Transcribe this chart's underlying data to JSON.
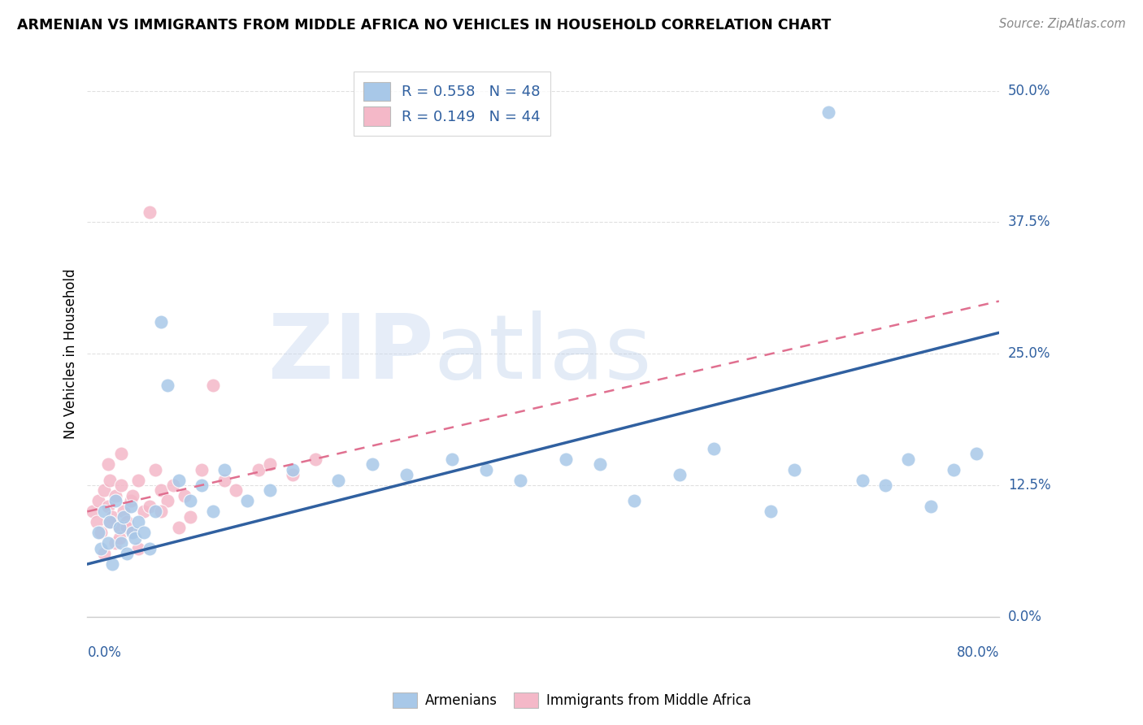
{
  "title": "ARMENIAN VS IMMIGRANTS FROM MIDDLE AFRICA NO VEHICLES IN HOUSEHOLD CORRELATION CHART",
  "source": "Source: ZipAtlas.com",
  "ylabel": "No Vehicles in Household",
  "ytick_vals": [
    0.0,
    12.5,
    25.0,
    37.5,
    50.0
  ],
  "xlim": [
    0.0,
    80.0
  ],
  "ylim": [
    0.0,
    50.0
  ],
  "blue_color": "#a8c8e8",
  "pink_color": "#f4b8c8",
  "blue_line_color": "#3060a0",
  "pink_line_color": "#e07090",
  "watermark_zip": "ZIP",
  "watermark_atlas": "atlas",
  "watermark_color": "#c8d8ec",
  "background_color": "#ffffff",
  "grid_color": "#e0e0e0",
  "blue_R": 0.558,
  "blue_N": 48,
  "pink_R": 0.149,
  "pink_N": 44,
  "blue_line_start_y": 5.0,
  "blue_line_end_y": 27.0,
  "pink_line_start_y": 10.0,
  "pink_line_end_y": 30.0,
  "armenians_x": [
    1.0,
    1.2,
    1.5,
    1.8,
    2.0,
    2.2,
    2.5,
    2.8,
    3.0,
    3.2,
    3.5,
    3.8,
    4.0,
    4.2,
    4.5,
    5.0,
    5.5,
    6.0,
    6.5,
    7.0,
    8.0,
    9.0,
    10.0,
    11.0,
    12.0,
    14.0,
    16.0,
    18.0,
    22.0,
    25.0,
    28.0,
    32.0,
    35.0,
    38.0,
    42.0,
    45.0,
    48.0,
    52.0,
    55.0,
    60.0,
    62.0,
    65.0,
    68.0,
    70.0,
    72.0,
    74.0,
    76.0,
    78.0
  ],
  "armenians_y": [
    8.0,
    6.5,
    10.0,
    7.0,
    9.0,
    5.0,
    11.0,
    8.5,
    7.0,
    9.5,
    6.0,
    10.5,
    8.0,
    7.5,
    9.0,
    8.0,
    6.5,
    10.0,
    28.0,
    22.0,
    13.0,
    11.0,
    12.5,
    10.0,
    14.0,
    11.0,
    12.0,
    14.0,
    13.0,
    14.5,
    13.5,
    15.0,
    14.0,
    13.0,
    15.0,
    14.5,
    11.0,
    13.5,
    16.0,
    10.0,
    14.0,
    48.0,
    13.0,
    12.5,
    15.0,
    10.5,
    14.0,
    15.5
  ],
  "middle_africa_x": [
    0.5,
    0.8,
    1.0,
    1.2,
    1.5,
    1.8,
    2.0,
    2.2,
    2.5,
    2.8,
    3.0,
    3.2,
    3.5,
    3.8,
    4.0,
    4.5,
    5.0,
    5.5,
    6.0,
    6.5,
    7.0,
    8.0,
    9.0,
    10.0,
    11.0,
    13.0,
    15.0,
    18.0,
    3.0,
    2.5,
    2.0,
    1.5,
    3.5,
    4.0,
    5.5,
    7.5,
    1.8,
    2.8,
    4.5,
    6.5,
    8.5,
    12.0,
    16.0,
    20.0
  ],
  "middle_africa_y": [
    10.0,
    9.0,
    11.0,
    8.0,
    12.0,
    10.5,
    13.0,
    9.5,
    11.5,
    8.5,
    12.5,
    10.0,
    9.0,
    11.0,
    8.0,
    13.0,
    10.0,
    38.5,
    14.0,
    12.0,
    11.0,
    8.5,
    9.5,
    14.0,
    22.0,
    12.0,
    14.0,
    13.5,
    15.5,
    7.0,
    9.0,
    6.0,
    8.5,
    11.5,
    10.5,
    12.5,
    14.5,
    7.5,
    6.5,
    10.0,
    11.5,
    13.0,
    14.5,
    15.0
  ]
}
